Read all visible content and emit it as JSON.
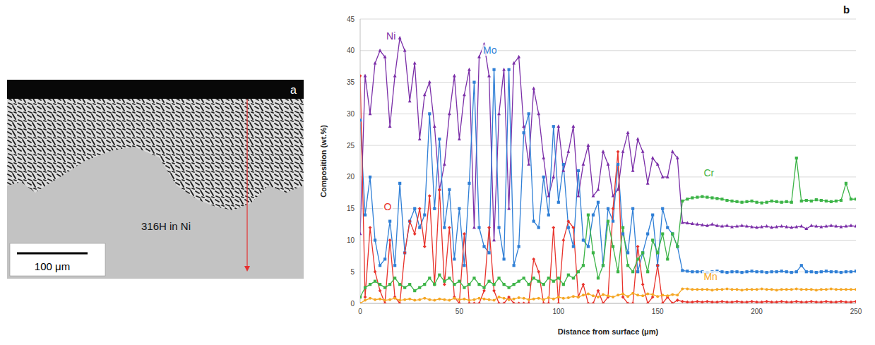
{
  "image_panel": {
    "panel_label": "a",
    "sample_label": "316H in Ni",
    "scale_bar": "100 μm"
  },
  "chart_data": {
    "type": "line",
    "panel_label": "b",
    "x_label": "Distance from surface (μm)",
    "y_label": "Composition (wt.%)",
    "xlim": [
      0,
      250
    ],
    "xticks": [
      0,
      50,
      100,
      150,
      200,
      250
    ],
    "ylim": [
      0,
      45
    ],
    "yticks": [
      0,
      5,
      10,
      15,
      20,
      25,
      30,
      35,
      40,
      45
    ],
    "grid": true,
    "x": [
      0,
      2.5,
      5,
      7.5,
      10,
      12.5,
      15,
      17.5,
      20,
      22.5,
      25,
      27.5,
      30,
      32.5,
      35,
      37.5,
      40,
      42.5,
      45,
      47.5,
      50,
      52.5,
      55,
      57.5,
      60,
      62.5,
      65,
      67.5,
      70,
      72.5,
      75,
      77.5,
      80,
      82.5,
      85,
      87.5,
      90,
      92.5,
      95,
      97.5,
      100,
      102.5,
      105,
      107.5,
      110,
      112.5,
      115,
      117.5,
      120,
      122.5,
      125,
      127.5,
      130,
      132.5,
      135,
      137.5,
      140,
      142.5,
      145,
      147.5,
      150,
      152.5,
      155,
      157.5,
      160,
      162.5,
      165,
      167.5,
      170,
      172.5,
      175,
      177.5,
      180,
      182.5,
      185,
      187.5,
      190,
      192.5,
      195,
      197.5,
      200,
      202.5,
      205,
      207.5,
      210,
      212.5,
      215,
      217.5,
      220,
      222.5,
      225,
      227.5,
      230,
      232.5,
      235,
      237.5,
      240,
      242.5,
      245,
      247.5,
      250
    ],
    "series": [
      {
        "name": "Ni",
        "color": "#7b2fa8",
        "marker": "triangle",
        "values": [
          11,
          36,
          30,
          38,
          40,
          39,
          28,
          36,
          42,
          40,
          32,
          38,
          26,
          33,
          35,
          28,
          18,
          22,
          30,
          36,
          26,
          33,
          37,
          12,
          39,
          41,
          36,
          10,
          30,
          37,
          15,
          38,
          39,
          28,
          22,
          34,
          30,
          23,
          17,
          20,
          28,
          21,
          24,
          28,
          17,
          22,
          25,
          17,
          18,
          24,
          22,
          17,
          18,
          24,
          27,
          21,
          26,
          24,
          19,
          23,
          22,
          20,
          20,
          24,
          23,
          12.8,
          12.7,
          12.6,
          12.5,
          12.4,
          12.3,
          12.5,
          12.3,
          12.2,
          12.3,
          12.1,
          12.2,
          12.3,
          12.2,
          12.1,
          12.0,
          12.1,
          12.2,
          12.0,
          12.1,
          12.2,
          12.1,
          12.0,
          12.1,
          12.2,
          11.8,
          12.3,
          12.2,
          12.1,
          12.2,
          12.3,
          12.2,
          12.1,
          12.2,
          12.3,
          12.2
        ]
      },
      {
        "name": "Mo",
        "color": "#2f7fd6",
        "marker": "square",
        "values": [
          29,
          14,
          20,
          10,
          6,
          7,
          13,
          6,
          19,
          8,
          13,
          15,
          12,
          14,
          30,
          15,
          26,
          12,
          18,
          7,
          15,
          6,
          19,
          35,
          12,
          9,
          8,
          37,
          12,
          7,
          37,
          6,
          9,
          27,
          30,
          13,
          12,
          20,
          14,
          28,
          16,
          22,
          12,
          9,
          21,
          10,
          9,
          14,
          16,
          6,
          15,
          13,
          22,
          11,
          8,
          15,
          5,
          8,
          11,
          14,
          6,
          15,
          12,
          11,
          9,
          5.2,
          5.1,
          5.0,
          5.0,
          5.0,
          4.9,
          5.0,
          5.1,
          5.0,
          4.9,
          5.0,
          5.0,
          4.9,
          5.0,
          5.1,
          5.0,
          5.0,
          4.9,
          5.0,
          5.0,
          5.1,
          5.0,
          4.9,
          5.0,
          6.0,
          5.0,
          5.0,
          4.9,
          5.0,
          5.1,
          5.0,
          5.0,
          4.9,
          5.0,
          5.0,
          5.1
        ]
      },
      {
        "name": "O",
        "color": "#e8322b",
        "marker": "diamond",
        "values": [
          36,
          1,
          12,
          5,
          2,
          0,
          10,
          1,
          0,
          8,
          13,
          11,
          15,
          9,
          17,
          3,
          18,
          3,
          12,
          1,
          0,
          11,
          0,
          0,
          0,
          2,
          12,
          2,
          0,
          0,
          1,
          0,
          0,
          0,
          0,
          7,
          5,
          0,
          0,
          12,
          0,
          10,
          13,
          12,
          1,
          3,
          0,
          0,
          2,
          0,
          1,
          15,
          24,
          1,
          0,
          0,
          9,
          3,
          0,
          1,
          6,
          0,
          1,
          0,
          0.5,
          0.3,
          0.2,
          0.2,
          0.3,
          0.2,
          0.3,
          0.2,
          0.2,
          0.3,
          0.2,
          0.2,
          0.3,
          0.2,
          0.2,
          0.3,
          0.2,
          0.2,
          0.3,
          0.2,
          0.2,
          0.3,
          0.2,
          0.2,
          0.3,
          0.2,
          0.2,
          0.3,
          0.2,
          0.2,
          0.3,
          0.2,
          0.2,
          0.3,
          0.2,
          0.2,
          0.3
        ]
      },
      {
        "name": "Cr",
        "color": "#3cb447",
        "marker": "square",
        "values": [
          1,
          2.5,
          3,
          3.5,
          3,
          2.5,
          3,
          4,
          3,
          2.5,
          3,
          2,
          2.5,
          3,
          4,
          3,
          4.5,
          3.5,
          4,
          3,
          3.5,
          2.5,
          3,
          4,
          3,
          2.5,
          3.5,
          3,
          4,
          3,
          2.5,
          3,
          3.5,
          4,
          3,
          4,
          3.5,
          3,
          4,
          3.5,
          4,
          3,
          4.5,
          4,
          5,
          6,
          14,
          8,
          4,
          6,
          13,
          9,
          5,
          12,
          6,
          5,
          7,
          8,
          5,
          10,
          8,
          11,
          7,
          11,
          9,
          16.2,
          16.5,
          16.7,
          16.8,
          16.9,
          16.8,
          16.7,
          16.6,
          16.5,
          16.3,
          16.2,
          16.1,
          16.0,
          16.1,
          16.2,
          16.0,
          15.9,
          16.0,
          16.2,
          16.1,
          16.0,
          16.1,
          16.0,
          23.0,
          16.2,
          16.3,
          16.2,
          16.4,
          16.3,
          16.2,
          16.1,
          16.2,
          16.3,
          19.0,
          16.5,
          16.5
        ]
      },
      {
        "name": "Mn",
        "color": "#f5a623",
        "marker": "circle",
        "values": [
          0,
          0.5,
          0.8,
          0.6,
          0.7,
          0.5,
          0.6,
          0.8,
          0.5,
          0.6,
          0.7,
          0.5,
          0.6,
          0.8,
          0.6,
          0.5,
          0.7,
          0.6,
          0.5,
          0.8,
          0.6,
          0.7,
          0.5,
          0.6,
          0.8,
          0.7,
          0.6,
          0.5,
          1.0,
          0.8,
          0.6,
          0.7,
          0.9,
          0.8,
          0.6,
          0.7,
          0.8,
          0.6,
          0.9,
          0.7,
          1.0,
          0.8,
          0.9,
          1.1,
          1.0,
          1.3,
          1.5,
          1.2,
          1.0,
          1.4,
          1.2,
          1.0,
          1.3,
          1.5,
          1.1,
          1.6,
          1.3,
          1.2,
          1.5,
          1.4,
          1.1,
          1.3,
          1.2,
          1.4,
          1.3,
          2.3,
          2.3,
          2.2,
          2.2,
          2.2,
          2.2,
          2.1,
          2.2,
          2.2,
          2.3,
          2.2,
          2.2,
          2.1,
          2.2,
          2.2,
          2.2,
          2.3,
          2.2,
          2.2,
          2.1,
          2.2,
          2.2,
          2.2,
          2.3,
          2.2,
          2.2,
          2.2,
          2.1,
          2.2,
          2.2,
          2.3,
          2.2,
          2.2,
          2.2,
          2.2,
          2.2
        ]
      }
    ]
  }
}
